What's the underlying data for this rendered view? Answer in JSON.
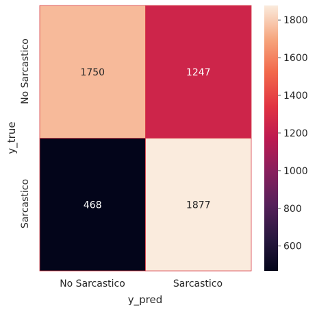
{
  "chart_data": {
    "type": "heatmap",
    "title": "",
    "xlabel": "y_pred",
    "ylabel": "y_true",
    "x_categories": [
      "No Sarcastico",
      "Sarcastico"
    ],
    "y_categories": [
      "No Sarcastico",
      "Sarcastico"
    ],
    "values": [
      [
        1750,
        1247
      ],
      [
        468,
        1877
      ]
    ],
    "cell_labels": [
      [
        "1750",
        "1247"
      ],
      [
        "468",
        "1877"
      ]
    ],
    "colorbar": {
      "min": 468,
      "max": 1877,
      "ticks": [
        "600",
        "800",
        "1000",
        "1200",
        "1400",
        "1600",
        "1800"
      ],
      "tick_values": [
        600,
        800,
        1000,
        1200,
        1400,
        1600,
        1800
      ],
      "colormap": "rocket"
    },
    "colors": {
      "cell_border": "#d8404a",
      "axis_text": "#262626"
    }
  }
}
